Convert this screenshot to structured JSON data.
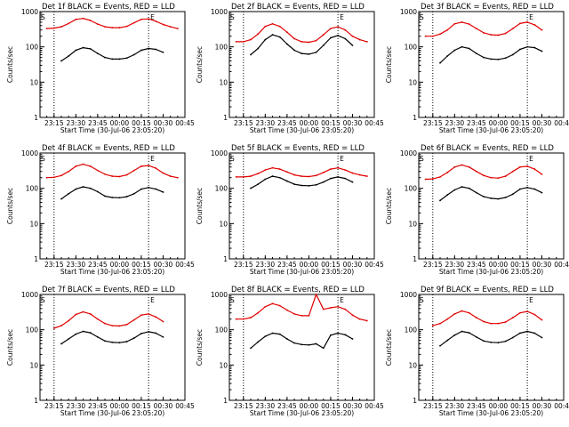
{
  "chart_data": [
    {
      "type": "line",
      "title": "Det 1f BLACK = Events, RED = LLD",
      "xlabel": "Start Time (30-Jul-06 23:05:20)",
      "ylabel": "Counts/sec",
      "yscale": "log",
      "ylim": [
        1,
        1000
      ],
      "xlim": [
        "23:05:20",
        "00:45"
      ],
      "x_ticks": [
        "23:15",
        "23:30",
        "23:45",
        "00:00",
        "00:15",
        "00:30",
        "00:45"
      ],
      "y_ticks": [
        "1",
        "10",
        "100",
        "1000"
      ],
      "markers": [
        "S",
        "E"
      ],
      "grid": false,
      "x": [
        "23:10",
        "23:15",
        "23:20",
        "23:25",
        "23:30",
        "23:35",
        "23:40",
        "23:45",
        "23:50",
        "23:55",
        "00:00",
        "00:05",
        "00:10",
        "00:15",
        "00:20",
        "00:25",
        "00:30",
        "00:35",
        "00:40"
      ],
      "series": [
        {
          "name": "LLD",
          "color": "#e00000",
          "values": [
            330,
            340,
            370,
            460,
            600,
            640,
            560,
            440,
            370,
            350,
            350,
            380,
            480,
            600,
            620,
            530,
            430,
            370,
            330
          ]
        },
        {
          "name": "Events",
          "color": "#000000",
          "values": [
            null,
            null,
            40,
            55,
            80,
            95,
            88,
            65,
            50,
            45,
            45,
            48,
            60,
            80,
            90,
            85,
            70,
            null,
            null
          ]
        }
      ]
    },
    {
      "type": "line",
      "title": "Det 2f BLACK = Events, RED = LLD",
      "xlabel": "Start Time (30-Jul-06 23:05:20)",
      "ylabel": "Counts/sec",
      "yscale": "log",
      "ylim": [
        1,
        1000
      ],
      "xlim": [
        "23:05:20",
        "00:45"
      ],
      "x_ticks": [
        "23:15",
        "23:30",
        "23:45",
        "00:00",
        "00:15",
        "00:30",
        "00:45"
      ],
      "y_ticks": [
        "1",
        "10",
        "100",
        "1000"
      ],
      "markers": [
        "S",
        "E"
      ],
      "grid": false,
      "x": [
        "23:10",
        "23:15",
        "23:20",
        "23:25",
        "23:30",
        "23:35",
        "23:40",
        "23:45",
        "23:50",
        "23:55",
        "00:00",
        "00:05",
        "00:10",
        "00:15",
        "00:20",
        "00:25",
        "00:30",
        "00:35",
        "00:40"
      ],
      "series": [
        {
          "name": "LLD",
          "color": "#e00000",
          "values": [
            140,
            140,
            160,
            230,
            380,
            450,
            380,
            260,
            170,
            140,
            135,
            150,
            220,
            330,
            370,
            300,
            200,
            160,
            140
          ]
        },
        {
          "name": "Events",
          "color": "#000000",
          "values": [
            null,
            null,
            60,
            90,
            160,
            220,
            190,
            120,
            80,
            65,
            62,
            70,
            110,
            180,
            210,
            170,
            110,
            null,
            null
          ]
        }
      ]
    },
    {
      "type": "line",
      "title": "Det 3f BLACK = Events, RED = LLD",
      "xlabel": "Start Time (30-Jul-06 23:05:20)",
      "ylabel": "Counts/sec",
      "yscale": "log",
      "ylim": [
        1,
        1000
      ],
      "xlim": [
        "23:05:20",
        "00:45"
      ],
      "x_ticks": [
        "23:15",
        "23:30",
        "23:45",
        "00:00",
        "00:15",
        "00:30",
        "00:45"
      ],
      "y_ticks": [
        "1",
        "10",
        "100",
        "1000"
      ],
      "markers": [
        "S",
        "E"
      ],
      "grid": false,
      "x": [
        "23:10",
        "23:15",
        "23:20",
        "23:25",
        "23:30",
        "23:35",
        "23:40",
        "23:45",
        "23:50",
        "23:55",
        "00:00",
        "00:05",
        "00:10",
        "00:15",
        "00:20",
        "00:25",
        "00:30",
        "00:35",
        "00:40"
      ],
      "series": [
        {
          "name": "LLD",
          "color": "#e00000",
          "values": [
            200,
            200,
            230,
            300,
            450,
            500,
            440,
            330,
            250,
            220,
            215,
            240,
            330,
            460,
            500,
            420,
            300,
            null,
            null
          ]
        },
        {
          "name": "Events",
          "color": "#000000",
          "values": [
            null,
            null,
            35,
            55,
            80,
            100,
            90,
            65,
            50,
            45,
            44,
            48,
            60,
            85,
            100,
            95,
            75,
            null,
            null
          ]
        }
      ]
    },
    {
      "type": "line",
      "title": "Det 4f BLACK = Events, RED = LLD",
      "xlabel": "Start Time (30-Jul-06 23:05:20)",
      "ylabel": "Counts/sec",
      "yscale": "log",
      "ylim": [
        1,
        1000
      ],
      "xlim": [
        "23:05:20",
        "00:45"
      ],
      "x_ticks": [
        "23:15",
        "23:30",
        "23:45",
        "00:00",
        "00:15",
        "00:30",
        "00:45"
      ],
      "y_ticks": [
        "1",
        "10",
        "100",
        "1000"
      ],
      "markers": [
        "S",
        "E"
      ],
      "grid": false,
      "x": [
        "23:10",
        "23:15",
        "23:20",
        "23:25",
        "23:30",
        "23:35",
        "23:40",
        "23:45",
        "23:50",
        "23:55",
        "00:00",
        "00:05",
        "00:10",
        "00:15",
        "00:20",
        "00:25",
        "00:30",
        "00:35",
        "00:40"
      ],
      "series": [
        {
          "name": "LLD",
          "color": "#e00000",
          "values": [
            200,
            205,
            230,
            300,
            420,
            480,
            420,
            320,
            250,
            220,
            215,
            240,
            320,
            420,
            440,
            370,
            270,
            220,
            200
          ]
        },
        {
          "name": "Events",
          "color": "#000000",
          "values": [
            null,
            null,
            50,
            70,
            95,
            110,
            100,
            80,
            60,
            55,
            54,
            58,
            70,
            95,
            105,
            95,
            78,
            null,
            null
          ]
        }
      ]
    },
    {
      "type": "line",
      "title": "Det 5f BLACK = Events, RED = LLD",
      "xlabel": "Start Time (30-Jul-06 23:05:20)",
      "ylabel": "Counts/sec",
      "yscale": "log",
      "ylim": [
        1,
        1000
      ],
      "xlim": [
        "23:05:20",
        "00:45"
      ],
      "x_ticks": [
        "23:15",
        "23:30",
        "23:45",
        "00:00",
        "00:15",
        "00:30",
        "00:45"
      ],
      "y_ticks": [
        "1",
        "10",
        "100",
        "1000"
      ],
      "markers": [
        "S",
        "E"
      ],
      "grid": false,
      "x": [
        "23:10",
        "23:15",
        "23:20",
        "23:25",
        "23:30",
        "23:35",
        "23:40",
        "23:45",
        "23:50",
        "23:55",
        "00:00",
        "00:05",
        "00:10",
        "00:15",
        "00:20",
        "00:25",
        "00:30",
        "00:35",
        "00:40"
      ],
      "series": [
        {
          "name": "LLD",
          "color": "#e00000",
          "values": [
            210,
            210,
            220,
            260,
            330,
            380,
            350,
            290,
            240,
            220,
            215,
            230,
            280,
            350,
            380,
            330,
            270,
            240,
            220
          ]
        },
        {
          "name": "Events",
          "color": "#000000",
          "values": [
            null,
            null,
            100,
            130,
            180,
            220,
            200,
            160,
            130,
            120,
            118,
            125,
            150,
            190,
            210,
            190,
            150,
            null,
            null
          ]
        }
      ]
    },
    {
      "type": "line",
      "title": "Det 6f BLACK = Events, RED = LLD",
      "xlabel": "Start Time (30-Jul-06 23:05:20)",
      "ylabel": "Counts/sec",
      "yscale": "log",
      "ylim": [
        1,
        1000
      ],
      "xlim": [
        "23:05:20",
        "00:45"
      ],
      "x_ticks": [
        "23:15",
        "23:30",
        "23:45",
        "00:00",
        "00:15",
        "00:30",
        "00:45"
      ],
      "y_ticks": [
        "1",
        "10",
        "100",
        "1000"
      ],
      "markers": [
        "S",
        "E"
      ],
      "grid": false,
      "x": [
        "23:10",
        "23:15",
        "23:20",
        "23:25",
        "23:30",
        "23:35",
        "23:40",
        "23:45",
        "23:50",
        "23:55",
        "00:00",
        "00:05",
        "00:10",
        "00:15",
        "00:20",
        "00:25",
        "00:30",
        "00:35",
        "00:40"
      ],
      "series": [
        {
          "name": "LLD",
          "color": "#e00000",
          "values": [
            180,
            185,
            210,
            280,
            400,
            460,
            400,
            300,
            230,
            200,
            195,
            220,
            300,
            400,
            420,
            350,
            250,
            null,
            null
          ]
        },
        {
          "name": "Events",
          "color": "#000000",
          "values": [
            null,
            null,
            45,
            65,
            90,
            110,
            100,
            75,
            58,
            52,
            50,
            55,
            68,
            95,
            105,
            95,
            75,
            null,
            null
          ]
        }
      ]
    },
    {
      "type": "line",
      "title": "Det 7f BLACK = Events, RED = LLD",
      "xlabel": "Start Time (30-Jul-06 23:05:20)",
      "ylabel": "Counts/sec",
      "yscale": "log",
      "ylim": [
        1,
        1000
      ],
      "xlim": [
        "23:05:20",
        "00:45"
      ],
      "x_ticks": [
        "23:15",
        "23:30",
        "23:45",
        "00:00",
        "00:15",
        "00:30",
        "00:45"
      ],
      "y_ticks": [
        "1",
        "10",
        "100",
        "1000"
      ],
      "markers": [
        "S",
        "E"
      ],
      "grid": false,
      "x": [
        "23:10",
        "23:15",
        "23:20",
        "23:25",
        "23:30",
        "23:35",
        "23:40",
        "23:45",
        "23:50",
        "23:55",
        "00:00",
        "00:05",
        "00:10",
        "00:15",
        "00:20",
        "00:25",
        "00:30",
        "00:35",
        "00:40"
      ],
      "series": [
        {
          "name": "LLD",
          "color": "#e00000",
          "values": [
            null,
            110,
            130,
            180,
            270,
            320,
            280,
            200,
            150,
            130,
            128,
            140,
            190,
            260,
            280,
            230,
            170,
            null,
            null
          ]
        },
        {
          "name": "Events",
          "color": "#000000",
          "values": [
            null,
            null,
            40,
            55,
            75,
            90,
            82,
            62,
            48,
            44,
            43,
            46,
            58,
            78,
            88,
            80,
            62,
            null,
            null
          ]
        }
      ]
    },
    {
      "type": "line",
      "title": "Det 8f BLACK = Events, RED = LLD",
      "xlabel": "Start Time (30-Jul-06 23:05:20)",
      "ylabel": "Counts/sec",
      "yscale": "log",
      "ylim": [
        1,
        1000
      ],
      "xlim": [
        "23:05:20",
        "00:45"
      ],
      "x_ticks": [
        "23:15",
        "23:30",
        "23:45",
        "00:00",
        "00:15",
        "00:30",
        "00:45"
      ],
      "y_ticks": [
        "1",
        "10",
        "100",
        "1000"
      ],
      "markers": [
        "S",
        "E"
      ],
      "grid": false,
      "x": [
        "23:10",
        "23:15",
        "23:20",
        "23:25",
        "23:30",
        "23:35",
        "23:40",
        "23:45",
        "23:50",
        "23:55",
        "00:00",
        "00:05",
        "00:10",
        "00:15",
        "00:20",
        "00:25",
        "00:30",
        "00:35",
        "00:40"
      ],
      "series": [
        {
          "name": "LLD",
          "color": "#e00000",
          "values": [
            200,
            200,
            220,
            300,
            450,
            550,
            480,
            360,
            280,
            250,
            250,
            1000,
            380,
            420,
            450,
            380,
            260,
            200,
            180
          ]
        },
        {
          "name": "Events",
          "color": "#000000",
          "values": [
            null,
            null,
            30,
            45,
            65,
            80,
            75,
            55,
            42,
            38,
            37,
            40,
            30,
            70,
            80,
            72,
            55,
            null,
            null
          ]
        }
      ]
    },
    {
      "type": "line",
      "title": "Det 9f BLACK = Events, RED = LLD",
      "xlabel": "Start Time (30-Jul-06 23:05:20)",
      "ylabel": "Counts/sec",
      "yscale": "log",
      "ylim": [
        1,
        1000
      ],
      "xlim": [
        "23:05:20",
        "00:45"
      ],
      "x_ticks": [
        "23:15",
        "23:30",
        "23:45",
        "00:00",
        "00:15",
        "00:30",
        "00:45"
      ],
      "y_ticks": [
        "1",
        "10",
        "100",
        "1000"
      ],
      "markers": [
        "S",
        "E"
      ],
      "grid": false,
      "x": [
        "23:10",
        "23:15",
        "23:20",
        "23:25",
        "23:30",
        "23:35",
        "23:40",
        "23:45",
        "23:50",
        "23:55",
        "00:00",
        "00:05",
        "00:10",
        "00:15",
        "00:20",
        "00:25",
        "00:30",
        "00:35",
        "00:40"
      ],
      "series": [
        {
          "name": "LLD",
          "color": "#e00000",
          "values": [
            null,
            130,
            150,
            200,
            280,
            340,
            300,
            220,
            170,
            150,
            150,
            165,
            220,
            300,
            330,
            270,
            190,
            null,
            null
          ]
        },
        {
          "name": "Events",
          "color": "#000000",
          "values": [
            null,
            null,
            35,
            50,
            70,
            90,
            82,
            62,
            48,
            44,
            43,
            47,
            60,
            80,
            90,
            80,
            60,
            null,
            null
          ]
        }
      ]
    }
  ]
}
